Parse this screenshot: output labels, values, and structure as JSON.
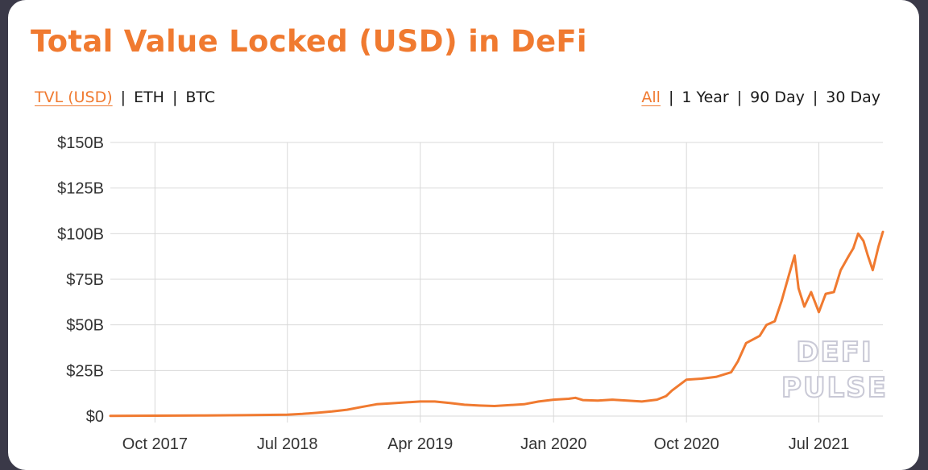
{
  "title": "Total Value Locked (USD) in DeFi",
  "units_toggle": [
    {
      "label": "TVL (USD)",
      "active": true
    },
    {
      "label": "ETH",
      "active": false
    },
    {
      "label": "BTC",
      "active": false
    }
  ],
  "range_toggle": [
    {
      "label": "All",
      "active": true
    },
    {
      "label": "1 Year",
      "active": false
    },
    {
      "label": "90 Day",
      "active": false
    },
    {
      "label": "30 Day",
      "active": false
    }
  ],
  "watermark": [
    "DEFI",
    "PULSE"
  ],
  "colors": {
    "accent": "#f07a30",
    "grid": "#d9d9d9",
    "text": "#333333"
  },
  "chart_data": {
    "type": "line",
    "title": "Total Value Locked (USD) in DeFi",
    "xlabel": "",
    "ylabel": "",
    "ylim": [
      0,
      150
    ],
    "yticks": [
      0,
      25,
      50,
      75,
      100,
      125,
      150
    ],
    "ytick_labels": [
      "$0",
      "$25B",
      "$50B",
      "$75B",
      "$100B",
      "$125B",
      "$150B"
    ],
    "xlim": [
      "2017-07-01",
      "2021-11-10"
    ],
    "xticks": [
      "2017-10-01",
      "2018-07-01",
      "2019-04-01",
      "2020-01-01",
      "2020-10-01",
      "2021-07-01"
    ],
    "xtick_labels": [
      "Oct 2017",
      "Jul 2018",
      "Apr 2019",
      "Jan 2020",
      "Oct 2020",
      "Jul 2021"
    ],
    "grid": true,
    "series": [
      {
        "color": "#f07a30",
        "x": [
          "2017-07-01",
          "2017-10-01",
          "2018-01-01",
          "2018-04-01",
          "2018-07-01",
          "2018-08-01",
          "2018-09-01",
          "2018-10-01",
          "2018-11-01",
          "2018-12-01",
          "2019-01-01",
          "2019-02-01",
          "2019-03-01",
          "2019-04-01",
          "2019-05-01",
          "2019-06-01",
          "2019-07-01",
          "2019-08-01",
          "2019-09-01",
          "2019-10-01",
          "2019-11-01",
          "2019-12-01",
          "2020-01-01",
          "2020-02-01",
          "2020-02-15",
          "2020-03-01",
          "2020-04-01",
          "2020-05-01",
          "2020-06-01",
          "2020-07-01",
          "2020-08-01",
          "2020-08-20",
          "2020-09-01",
          "2020-10-01",
          "2020-11-01",
          "2020-12-01",
          "2021-01-01",
          "2021-01-15",
          "2021-02-01",
          "2021-02-15",
          "2021-03-01",
          "2021-03-15",
          "2021-04-01",
          "2021-04-15",
          "2021-05-01",
          "2021-05-12",
          "2021-05-20",
          "2021-06-01",
          "2021-06-15",
          "2021-07-01",
          "2021-07-15",
          "2021-08-01",
          "2021-08-15",
          "2021-09-01",
          "2021-09-10",
          "2021-09-20",
          "2021-10-01",
          "2021-10-10",
          "2021-10-20",
          "2021-11-01",
          "2021-11-10"
        ],
        "y": [
          0.1,
          0.2,
          0.3,
          0.5,
          0.8,
          1.2,
          1.8,
          2.5,
          3.5,
          5,
          6.5,
          7,
          7.5,
          8,
          8,
          7.2,
          6.2,
          5.8,
          5.5,
          6,
          6.5,
          8,
          9,
          9.5,
          10,
          8.8,
          8.5,
          9,
          8.5,
          8,
          9,
          11,
          14,
          20,
          20.5,
          21.5,
          24,
          30,
          40,
          42,
          44,
          50,
          52,
          63,
          78,
          88,
          70,
          60,
          68,
          57,
          67,
          68,
          80,
          88,
          92,
          100,
          96,
          88,
          80,
          93,
          101
        ]
      }
    ]
  }
}
